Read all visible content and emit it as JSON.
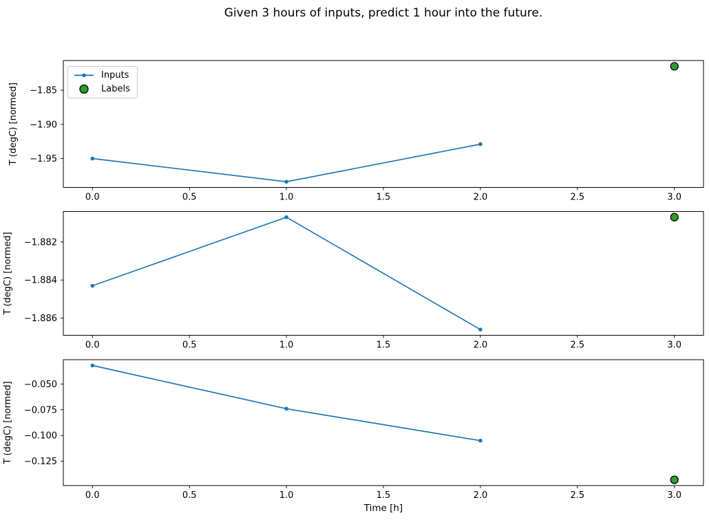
{
  "figure": {
    "title": "Given 3 hours of inputs, predict 1 hour into the future.",
    "xlabel": "Time [h]",
    "background": "#ffffff"
  },
  "legend": {
    "items": [
      {
        "label": "Inputs",
        "marker": "line-with-dot"
      },
      {
        "label": "Labels",
        "marker": "filled-circle"
      }
    ]
  },
  "colors": {
    "inputs": "#1f77b4",
    "labels": "#2ca02c",
    "label_edge": "#000000",
    "axis": "#000000",
    "legend_border": "#cccccc"
  },
  "chart_data": [
    {
      "type": "line",
      "ylabel": "T (degC) [normed]",
      "xlim": [
        -0.15,
        3.15
      ],
      "ylim": [
        -1.9923,
        -1.8066
      ],
      "xticks": [
        0.0,
        0.5,
        1.0,
        1.5,
        2.0,
        2.5,
        3.0
      ],
      "xtick_labels": [
        "0.0",
        "0.5",
        "1.0",
        "1.5",
        "2.0",
        "2.5",
        "3.0"
      ],
      "yticks": [
        -1.85,
        -1.9,
        -1.95
      ],
      "ytick_labels": [
        "−1.85",
        "−1.90",
        "−1.95"
      ],
      "grid": false,
      "legend_position": "upper-left",
      "series": [
        {
          "name": "Inputs",
          "type": "line",
          "color": "#1f77b4",
          "x": [
            0,
            1,
            2
          ],
          "y": [
            -1.95,
            -1.984,
            -1.929
          ]
        },
        {
          "name": "Labels",
          "type": "scatter",
          "color": "#2ca02c",
          "edge": "#000000",
          "x": [
            3
          ],
          "y": [
            -1.815
          ]
        }
      ]
    },
    {
      "type": "line",
      "ylabel": "T (degC) [normed]",
      "xlim": [
        -0.15,
        3.15
      ],
      "ylim": [
        -1.8869,
        -1.8804
      ],
      "xticks": [
        0.0,
        0.5,
        1.0,
        1.5,
        2.0,
        2.5,
        3.0
      ],
      "xtick_labels": [
        "0.0",
        "0.5",
        "1.0",
        "1.5",
        "2.0",
        "2.5",
        "3.0"
      ],
      "yticks": [
        -1.882,
        -1.884,
        -1.886
      ],
      "ytick_labels": [
        "−1.882",
        "−1.884",
        "−1.886"
      ],
      "grid": false,
      "series": [
        {
          "name": "Inputs",
          "type": "line",
          "color": "#1f77b4",
          "x": [
            0,
            1,
            2
          ],
          "y": [
            -1.8843,
            -1.8807,
            -1.8866
          ]
        },
        {
          "name": "Labels",
          "type": "scatter",
          "color": "#2ca02c",
          "edge": "#000000",
          "x": [
            3
          ],
          "y": [
            -1.8807
          ]
        }
      ]
    },
    {
      "type": "line",
      "ylabel": "T (degC) [normed]",
      "xlim": [
        -0.15,
        3.15
      ],
      "ylim": [
        -0.1486,
        -0.0264
      ],
      "xticks": [
        0.0,
        0.5,
        1.0,
        1.5,
        2.0,
        2.5,
        3.0
      ],
      "xtick_labels": [
        "0.0",
        "0.5",
        "1.0",
        "1.5",
        "2.0",
        "2.5",
        "3.0"
      ],
      "yticks": [
        -0.05,
        -0.075,
        -0.1,
        -0.125
      ],
      "ytick_labels": [
        "−0.050",
        "−0.075",
        "−0.100",
        "−0.125"
      ],
      "grid": false,
      "series": [
        {
          "name": "Inputs",
          "type": "line",
          "color": "#1f77b4",
          "x": [
            0,
            1,
            2
          ],
          "y": [
            -0.032,
            -0.074,
            -0.105
          ]
        },
        {
          "name": "Labels",
          "type": "scatter",
          "color": "#2ca02c",
          "edge": "#000000",
          "x": [
            3
          ],
          "y": [
            -0.143
          ]
        }
      ]
    }
  ]
}
